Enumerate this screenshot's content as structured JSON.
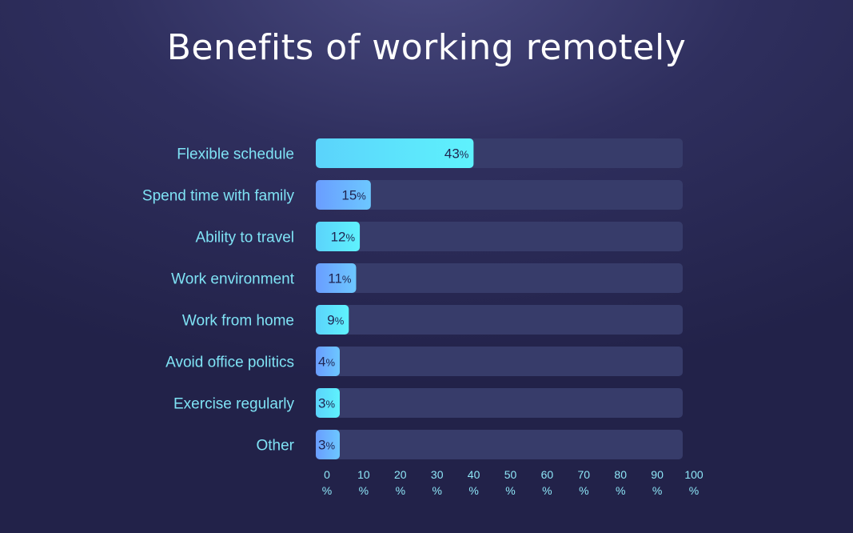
{
  "chart_data": {
    "type": "bar",
    "orientation": "horizontal",
    "title": "Benefits of working remotely",
    "categories": [
      "Flexible schedule",
      "Spend time with family",
      "Ability to travel",
      "Work environment",
      "Work from home",
      "Avoid office politics",
      "Exercise regularly",
      "Other"
    ],
    "values": [
      43,
      15,
      12,
      11,
      9,
      4,
      3,
      3
    ],
    "value_suffix": "%",
    "xlim": [
      0,
      100
    ],
    "xticks": [
      0,
      10,
      20,
      30,
      40,
      50,
      60,
      70,
      80,
      90,
      100
    ],
    "tick_unit": "%",
    "grid": false,
    "legend": "none"
  },
  "colors": {
    "bar_cyan": "#5cecfc",
    "bar_blue": "#6aaeff",
    "track": "#373c6a",
    "value_text": "#1f2450",
    "category_text": "#7fe3f5",
    "title_text": "#ffffff"
  }
}
